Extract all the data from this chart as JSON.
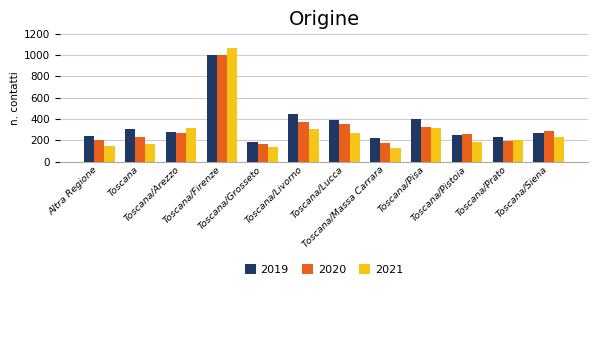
{
  "title": "Origine",
  "ylabel": "n. contatti",
  "categories": [
    "Altra Regione",
    "Toscana",
    "Toscana/Arezzo",
    "Toscana/Firenze",
    "Toscana/Grosseto",
    "Toscana/Livorno",
    "Toscana/Lucca",
    "Toscana/Massa Carrara",
    "Toscana/Pisa",
    "Toscana/Pistoia",
    "Toscana/Prato",
    "Toscana/Siena"
  ],
  "series": {
    "2019": [
      240,
      305,
      275,
      1005,
      185,
      450,
      390,
      220,
      405,
      255,
      235,
      270
    ],
    "2020": [
      200,
      235,
      265,
      1000,
      165,
      375,
      355,
      175,
      330,
      260,
      195,
      285
    ],
    "2021": [
      150,
      165,
      320,
      1065,
      140,
      305,
      270,
      130,
      315,
      185,
      205,
      230
    ]
  },
  "colors": {
    "2019": "#1F3864",
    "2020": "#E8601C",
    "2021": "#F5C518"
  },
  "ylim": [
    0,
    1200
  ],
  "yticks": [
    0,
    200,
    400,
    600,
    800,
    1000,
    1200
  ],
  "legend_labels": [
    "2019",
    "2020",
    "2021"
  ],
  "background_color": "#ffffff",
  "grid": true,
  "title_fontsize": 14
}
